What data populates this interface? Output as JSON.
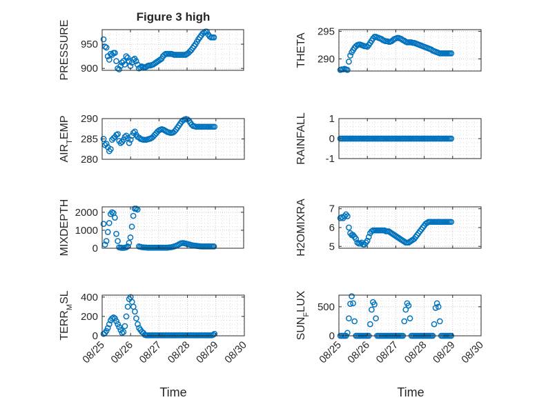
{
  "figure": {
    "title": "Figure 3 high",
    "xlabel": "Time",
    "x_tick_labels": [
      "08/25",
      "08/26",
      "08/27",
      "08/28",
      "08/29",
      "08/30"
    ]
  },
  "chart_data": [
    {
      "type": "scatter",
      "panel": "pressure",
      "ylabel": "PRESSURE",
      "ylabel_sub": "",
      "x_range_days": [
        25,
        30
      ],
      "ylim": [
        896,
        980
      ],
      "yticks": [
        900,
        950
      ],
      "grid": true,
      "marker": "circle-open",
      "color": "#0072BD",
      "x": [
        25.05,
        25.1,
        25.15,
        25.2,
        25.25,
        25.3,
        25.35,
        25.4,
        25.45,
        25.5,
        25.55,
        25.6,
        25.65,
        25.7,
        25.75,
        25.8,
        25.85,
        25.9,
        25.95,
        26.0,
        26.05,
        26.1,
        26.15,
        26.2,
        26.25,
        26.3,
        26.35,
        26.4,
        26.45,
        26.5,
        26.55,
        26.6,
        26.65,
        26.7,
        26.75,
        26.8,
        26.85,
        26.9,
        26.95,
        27.0,
        27.05,
        27.1,
        27.15,
        27.2,
        27.25,
        27.3,
        27.35,
        27.4,
        27.45,
        27.5,
        27.55,
        27.6,
        27.65,
        27.7,
        27.75,
        27.8,
        27.85,
        27.9,
        27.95,
        28.0,
        28.05,
        28.1,
        28.15,
        28.2,
        28.25,
        28.3,
        28.35,
        28.4,
        28.45,
        28.5,
        28.55,
        28.6,
        28.65,
        28.7,
        28.75,
        28.8,
        28.85,
        28.9,
        28.95
      ],
      "y": [
        960,
        945,
        943,
        925,
        918,
        930,
        928,
        932,
        932,
        915,
        900,
        898,
        905,
        912,
        915,
        908,
        925,
        922,
        915,
        905,
        912,
        918,
        920,
        915,
        908,
        900,
        902,
        904,
        903,
        902,
        903,
        905,
        906,
        906,
        907,
        908,
        910,
        912,
        914,
        916,
        918,
        920,
        925,
        928,
        930,
        930,
        930,
        930,
        930,
        929,
        928,
        928,
        928,
        928,
        928,
        928,
        928,
        928,
        928,
        930,
        932,
        935,
        938,
        942,
        946,
        950,
        955,
        960,
        964,
        968,
        972,
        974,
        976,
        976,
        970,
        966,
        964,
        964,
        964
      ]
    },
    {
      "type": "scatter",
      "panel": "theta",
      "ylabel": "THETA",
      "ylabel_sub": "",
      "x_range_days": [
        25,
        30
      ],
      "ylim": [
        287.8,
        295.3
      ],
      "yticks": [
        290,
        295
      ],
      "grid": true,
      "marker": "circle-open",
      "color": "#0072BD",
      "x": [
        25.05,
        25.1,
        25.15,
        25.2,
        25.25,
        25.3,
        25.35,
        25.4,
        25.45,
        25.5,
        25.55,
        25.6,
        25.65,
        25.7,
        25.75,
        25.8,
        25.85,
        25.9,
        25.95,
        26.0,
        26.05,
        26.1,
        26.15,
        26.2,
        26.25,
        26.3,
        26.35,
        26.4,
        26.45,
        26.5,
        26.55,
        26.6,
        26.65,
        26.7,
        26.75,
        26.8,
        26.85,
        26.9,
        26.95,
        27.0,
        27.05,
        27.1,
        27.15,
        27.2,
        27.25,
        27.3,
        27.35,
        27.4,
        27.45,
        27.5,
        27.55,
        27.6,
        27.65,
        27.7,
        27.75,
        27.8,
        27.85,
        27.9,
        27.95,
        28.0,
        28.05,
        28.1,
        28.15,
        28.2,
        28.25,
        28.3,
        28.35,
        28.4,
        28.45,
        28.5,
        28.55,
        28.6,
        28.65,
        28.7,
        28.75,
        28.8,
        28.85,
        28.9,
        28.95
      ],
      "y": [
        288.0,
        288.1,
        288.1,
        288.2,
        288.1,
        288.0,
        289.5,
        290.6,
        291.2,
        291.6,
        292.0,
        292.3,
        292.5,
        292.6,
        292.6,
        292.5,
        292.4,
        292.3,
        292.3,
        292.2,
        292.5,
        292.9,
        293.3,
        293.7,
        294.0,
        294.0,
        293.9,
        293.8,
        293.7,
        293.6,
        293.4,
        293.3,
        293.2,
        293.2,
        293.1,
        293.1,
        293.2,
        293.4,
        293.6,
        293.7,
        293.8,
        293.8,
        293.7,
        293.6,
        293.4,
        293.3,
        293.1,
        293.0,
        293.0,
        293.0,
        293.0,
        292.9,
        292.9,
        292.8,
        292.7,
        292.6,
        292.5,
        292.4,
        292.3,
        292.2,
        292.1,
        292.0,
        291.9,
        291.8,
        291.7,
        291.5,
        291.4,
        291.3,
        291.2,
        291.1,
        291.0,
        291.0,
        291.0,
        291.0,
        291.0,
        291.0,
        291.0,
        291.0,
        291.0
      ]
    },
    {
      "type": "scatter",
      "panel": "air_temp",
      "ylabel": "AIR",
      "ylabel_sub": "T",
      "ylabel_suffix": "EMP",
      "x_range_days": [
        25,
        30
      ],
      "ylim": [
        280,
        290
      ],
      "yticks": [
        280,
        285,
        290
      ],
      "grid": true,
      "marker": "circle-open",
      "color": "#0072BD",
      "x": [
        25.05,
        25.1,
        25.15,
        25.2,
        25.25,
        25.3,
        25.35,
        25.4,
        25.45,
        25.5,
        25.55,
        25.6,
        25.65,
        25.7,
        25.75,
        25.8,
        25.85,
        25.9,
        25.95,
        26.0,
        26.05,
        26.1,
        26.15,
        26.2,
        26.25,
        26.3,
        26.35,
        26.4,
        26.45,
        26.5,
        26.55,
        26.6,
        26.65,
        26.7,
        26.75,
        26.8,
        26.85,
        26.9,
        26.95,
        27.0,
        27.05,
        27.1,
        27.15,
        27.2,
        27.25,
        27.3,
        27.35,
        27.4,
        27.45,
        27.5,
        27.55,
        27.6,
        27.65,
        27.7,
        27.75,
        27.8,
        27.85,
        27.9,
        27.95,
        28.0,
        28.05,
        28.1,
        28.15,
        28.2,
        28.25,
        28.3,
        28.35,
        28.4,
        28.45,
        28.5,
        28.55,
        28.6,
        28.65,
        28.7,
        28.75,
        28.8,
        28.85,
        28.9,
        28.95
      ],
      "y": [
        285.0,
        283.5,
        283.8,
        283.0,
        282.0,
        282.5,
        284.8,
        285.2,
        285.5,
        286.0,
        286.2,
        284.5,
        284.0,
        284.3,
        284.8,
        285.5,
        285.8,
        285.2,
        284.0,
        284.8,
        285.8,
        286.5,
        286.8,
        286.0,
        285.5,
        285.3,
        285.0,
        284.9,
        284.8,
        284.8,
        284.8,
        284.9,
        285.0,
        285.1,
        285.3,
        285.6,
        286.0,
        286.4,
        286.8,
        287.1,
        287.3,
        287.4,
        287.3,
        287.1,
        286.9,
        286.7,
        286.6,
        286.5,
        286.5,
        286.6,
        286.9,
        287.3,
        287.8,
        288.3,
        288.8,
        289.3,
        289.6,
        289.8,
        289.9,
        289.8,
        289.5,
        289.0,
        288.5,
        288.2,
        288.1,
        288.0,
        288.0,
        288.0,
        288.0,
        288.0,
        288.0,
        288.0,
        288.0,
        288.0,
        288.0,
        288.0,
        288.0,
        288.0,
        288.0
      ]
    },
    {
      "type": "scatter",
      "panel": "rainfall",
      "ylabel": "RAINFALL",
      "ylabel_sub": "",
      "x_range_days": [
        25,
        30
      ],
      "ylim": [
        -1,
        1
      ],
      "yticks": [
        -1,
        0,
        1
      ],
      "grid": true,
      "marker": "circle-open",
      "color": "#0072BD",
      "x_start": 25.05,
      "x_end": 28.95,
      "x_step": 0.05,
      "y_constant": 0
    },
    {
      "type": "scatter",
      "panel": "mixdepth",
      "ylabel": "MIXDEPTH",
      "ylabel_sub": "",
      "x_range_days": [
        25,
        30
      ],
      "ylim": [
        0,
        2300
      ],
      "yticks": [
        0,
        1000,
        2000
      ],
      "grid": true,
      "marker": "circle-open",
      "color": "#0072BD",
      "x": [
        25.05,
        25.1,
        25.15,
        25.2,
        25.25,
        25.3,
        25.35,
        25.4,
        25.45,
        25.5,
        25.55,
        25.6,
        25.65,
        25.7,
        25.75,
        25.8,
        25.85,
        25.9,
        25.95,
        26.0,
        26.05,
        26.1,
        26.15,
        26.2,
        26.25,
        26.3,
        26.35,
        26.4,
        26.45,
        26.5,
        26.55,
        26.6,
        26.65,
        26.7,
        26.75,
        26.8,
        26.85,
        26.9,
        26.95,
        27.0,
        27.05,
        27.1,
        27.15,
        27.2,
        27.25,
        27.3,
        27.35,
        27.4,
        27.45,
        27.5,
        27.55,
        27.6,
        27.65,
        27.7,
        27.75,
        27.8,
        27.85,
        27.9,
        27.95,
        28.0,
        28.05,
        28.1,
        28.15,
        28.2,
        28.25,
        28.3,
        28.35,
        28.4,
        28.45,
        28.5,
        28.55,
        28.6,
        28.65,
        28.7,
        28.75,
        28.8,
        28.85,
        28.9,
        28.95
      ],
      "y": [
        1350,
        200,
        400,
        900,
        1400,
        1900,
        2000,
        1950,
        1700,
        800,
        400,
        50,
        30,
        20,
        20,
        30,
        50,
        100,
        300,
        600,
        1200,
        1800,
        2200,
        2200,
        2150,
        100,
        80,
        60,
        50,
        40,
        40,
        30,
        30,
        30,
        30,
        30,
        30,
        30,
        30,
        30,
        30,
        30,
        30,
        30,
        30,
        30,
        40,
        50,
        60,
        80,
        100,
        130,
        160,
        200,
        250,
        280,
        290,
        280,
        260,
        240,
        220,
        200,
        180,
        160,
        150,
        140,
        130,
        120,
        110,
        100,
        100,
        100,
        100,
        100,
        100,
        100,
        100,
        100,
        100
      ]
    },
    {
      "type": "scatter",
      "panel": "h2omixra",
      "ylabel": "H2OMIXRA",
      "ylabel_sub": "",
      "x_range_days": [
        25,
        30
      ],
      "ylim": [
        4.9,
        7.1
      ],
      "yticks": [
        5,
        6,
        7
      ],
      "grid": true,
      "marker": "circle-open",
      "color": "#0072BD",
      "x": [
        25.05,
        25.1,
        25.15,
        25.2,
        25.25,
        25.3,
        25.35,
        25.4,
        25.45,
        25.5,
        25.55,
        25.6,
        25.65,
        25.7,
        25.75,
        25.8,
        25.85,
        25.9,
        25.95,
        26.0,
        26.05,
        26.1,
        26.15,
        26.2,
        26.25,
        26.3,
        26.35,
        26.4,
        26.45,
        26.5,
        26.55,
        26.6,
        26.65,
        26.7,
        26.75,
        26.8,
        26.85,
        26.9,
        26.95,
        27.0,
        27.05,
        27.1,
        27.15,
        27.2,
        27.25,
        27.3,
        27.35,
        27.4,
        27.45,
        27.5,
        27.55,
        27.6,
        27.65,
        27.7,
        27.75,
        27.8,
        27.85,
        27.9,
        27.95,
        28.0,
        28.05,
        28.1,
        28.15,
        28.2,
        28.25,
        28.3,
        28.35,
        28.4,
        28.45,
        28.5,
        28.55,
        28.6,
        28.65,
        28.7,
        28.75,
        28.8,
        28.85,
        28.9,
        28.95
      ],
      "y": [
        6.5,
        6.55,
        6.5,
        6.6,
        6.7,
        6.6,
        6.0,
        5.7,
        5.6,
        5.6,
        5.5,
        5.4,
        5.2,
        5.15,
        5.15,
        5.2,
        5.1,
        5.1,
        5.2,
        5.3,
        5.5,
        5.7,
        5.8,
        5.85,
        5.85,
        5.85,
        5.85,
        5.85,
        5.85,
        5.85,
        5.85,
        5.85,
        5.8,
        5.8,
        5.8,
        5.75,
        5.7,
        5.65,
        5.6,
        5.55,
        5.5,
        5.45,
        5.4,
        5.35,
        5.3,
        5.25,
        5.2,
        5.2,
        5.2,
        5.25,
        5.3,
        5.35,
        5.4,
        5.5,
        5.6,
        5.7,
        5.8,
        5.9,
        6.0,
        6.1,
        6.2,
        6.25,
        6.3,
        6.3,
        6.3,
        6.3,
        6.3,
        6.3,
        6.3,
        6.3,
        6.3,
        6.3,
        6.3,
        6.3,
        6.3,
        6.3,
        6.3,
        6.3,
        6.3
      ]
    },
    {
      "type": "scatter",
      "panel": "terr_msl",
      "ylabel": "TERR",
      "ylabel_sub": "M",
      "ylabel_suffix": "SL",
      "x_range_days": [
        25,
        30
      ],
      "ylim": [
        0,
        420
      ],
      "yticks": [
        0,
        200,
        400
      ],
      "grid": true,
      "marker": "circle-open",
      "color": "#0072BD",
      "x": [
        25.05,
        25.1,
        25.15,
        25.2,
        25.25,
        25.3,
        25.35,
        25.4,
        25.45,
        25.5,
        25.55,
        25.6,
        25.65,
        25.7,
        25.75,
        25.8,
        25.85,
        25.9,
        25.95,
        26.0,
        26.05,
        26.1,
        26.15,
        26.2,
        26.25,
        26.3,
        26.35,
        26.4,
        26.45,
        26.5,
        26.55,
        26.6,
        26.65,
        26.7,
        26.75,
        26.8,
        26.85,
        26.9,
        26.95,
        27.0,
        27.05,
        27.1,
        27.15,
        27.2,
        27.25,
        27.3,
        27.35,
        27.4,
        27.45,
        27.5,
        27.55,
        27.6,
        27.65,
        27.7,
        27.75,
        27.8,
        27.85,
        27.9,
        27.95,
        28.0,
        28.05,
        28.1,
        28.15,
        28.2,
        28.25,
        28.3,
        28.35,
        28.4,
        28.45,
        28.5,
        28.55,
        28.6,
        28.65,
        28.7,
        28.75,
        28.8,
        28.85,
        28.9,
        28.95
      ],
      "y": [
        20,
        30,
        50,
        80,
        120,
        160,
        180,
        190,
        180,
        150,
        120,
        90,
        60,
        30,
        40,
        100,
        200,
        300,
        380,
        400,
        350,
        300,
        250,
        180,
        120,
        80,
        60,
        40,
        30,
        10,
        5,
        5,
        5,
        5,
        5,
        5,
        5,
        5,
        5,
        5,
        5,
        5,
        5,
        5,
        5,
        5,
        5,
        5,
        5,
        5,
        5,
        5,
        5,
        5,
        5,
        5,
        5,
        5,
        5,
        5,
        5,
        5,
        5,
        5,
        5,
        5,
        5,
        5,
        5,
        5,
        5,
        5,
        5,
        5,
        5,
        5,
        5,
        10,
        20
      ]
    },
    {
      "type": "scatter",
      "panel": "sun_flux",
      "ylabel": "SUN",
      "ylabel_sub": "F",
      "ylabel_suffix": "LUX",
      "x_range_days": [
        25,
        30
      ],
      "ylim": [
        0,
        700
      ],
      "yticks": [
        0,
        500
      ],
      "grid": true,
      "marker": "circle-open",
      "color": "#0072BD",
      "x": [
        25.05,
        25.1,
        25.15,
        25.2,
        25.25,
        25.3,
        25.35,
        25.4,
        25.45,
        25.5,
        25.55,
        25.6,
        25.65,
        25.7,
        25.75,
        25.8,
        25.85,
        25.9,
        25.95,
        26.0,
        26.05,
        26.1,
        26.15,
        26.2,
        26.25,
        26.3,
        26.35,
        26.4,
        26.45,
        26.5,
        26.55,
        26.6,
        26.65,
        26.7,
        26.75,
        26.8,
        26.85,
        26.9,
        26.95,
        27.0,
        27.05,
        27.1,
        27.15,
        27.2,
        27.25,
        27.3,
        27.35,
        27.4,
        27.45,
        27.5,
        27.55,
        27.6,
        27.65,
        27.7,
        27.75,
        27.8,
        27.85,
        27.9,
        27.95,
        28.0,
        28.05,
        28.1,
        28.15,
        28.2,
        28.25,
        28.3,
        28.35,
        28.4,
        28.45,
        28.5,
        28.55,
        28.6,
        28.65,
        28.7,
        28.75,
        28.8,
        28.85,
        28.9,
        28.95
      ],
      "y": [
        0,
        0,
        0,
        0,
        0,
        50,
        300,
        550,
        680,
        560,
        250,
        0,
        0,
        0,
        0,
        0,
        0,
        0,
        0,
        0,
        0,
        200,
        450,
        580,
        540,
        300,
        0,
        0,
        0,
        0,
        0,
        0,
        0,
        0,
        0,
        0,
        0,
        0,
        0,
        0,
        0,
        0,
        0,
        0,
        0,
        250,
        450,
        560,
        520,
        300,
        0,
        0,
        0,
        0,
        0,
        0,
        0,
        0,
        0,
        0,
        0,
        0,
        0,
        0,
        0,
        0,
        200,
        480,
        560,
        500,
        250,
        0,
        0,
        0,
        0,
        0,
        0,
        0,
        0
      ]
    }
  ]
}
